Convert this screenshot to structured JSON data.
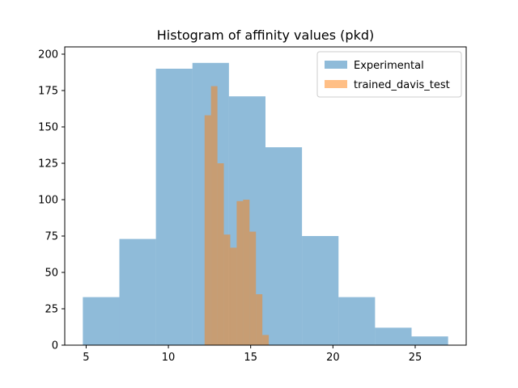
{
  "chart_data": {
    "type": "histogram",
    "title": "Histogram of affinity values (pkd)",
    "xlabel": "",
    "ylabel": "",
    "xlim": [
      3.7,
      28.1
    ],
    "ylim": [
      0,
      205
    ],
    "xticks": [
      5,
      10,
      15,
      20,
      25
    ],
    "yticks": [
      0,
      25,
      50,
      75,
      100,
      125,
      150,
      175,
      200
    ],
    "grid": false,
    "legend_position": "top-right",
    "series": [
      {
        "name": "Experimental",
        "color": "#1f77b4",
        "alpha": 0.5,
        "bin_edges": [
          4.8,
          7.02,
          9.24,
          11.46,
          13.68,
          15.9,
          18.12,
          20.34,
          22.56,
          24.78,
          27.0
        ],
        "counts": [
          33,
          73,
          190,
          194,
          171,
          136,
          75,
          33,
          12,
          6
        ]
      },
      {
        "name": "trained_davis_test",
        "color": "#ff7f0e",
        "alpha": 0.5,
        "bin_edges": [
          12.2,
          12.59,
          12.98,
          13.37,
          13.76,
          14.15,
          14.54,
          14.93,
          15.32,
          15.71,
          16.1
        ],
        "counts": [
          158,
          178,
          125,
          76,
          67,
          99,
          100,
          78,
          35,
          7
        ]
      }
    ]
  }
}
